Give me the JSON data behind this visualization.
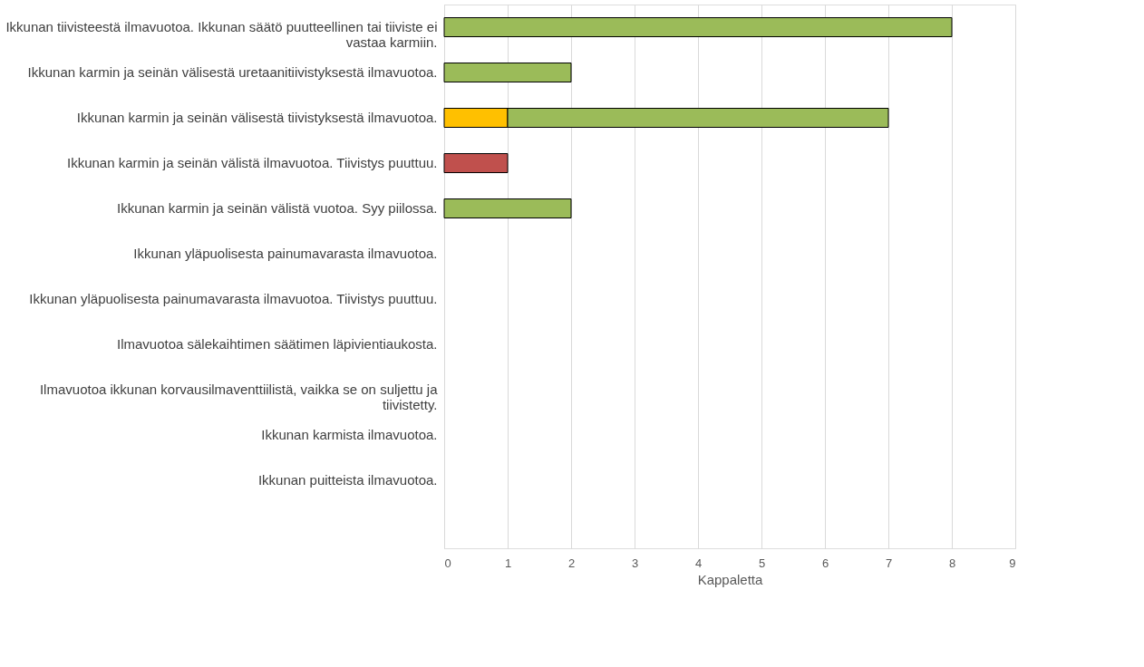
{
  "chart_data": {
    "type": "bar",
    "orientation": "horizontal",
    "stacked": true,
    "xlabel": "Kappaletta",
    "categories": [
      "Ikkunan tiivisteestä ilmavuotoa. Ikkunan säätö puutteellinen tai tiiviste ei vastaa karmiin.",
      "Ikkunan karmin ja seinän välisestä uretaanitiivistyksestä ilmavuotoa.",
      "Ikkunan karmin ja seinän välisestä tiivistyksestä ilmavuotoa.",
      "Ikkunan  karmin ja seinän välistä ilmavuotoa. Tiivistys puuttuu.",
      "Ikkunan karmin ja seinän välistä vuotoa. Syy piilossa.",
      "Ikkunan yläpuolisesta painumavarasta ilmavuotoa.",
      "Ikkunan yläpuolisesta painumavarasta ilmavuotoa. Tiivistys puuttuu.",
      "Ilmavuotoa sälekaihtimen säätimen läpivientiaukosta.",
      "Ilmavuotoa ikkunan korvausilmaventtiilistä, vaikka se on suljettu ja tiivistetty.",
      "Ikkunan karmista ilmavuotoa.",
      "Ikkunan puitteista ilmavuotoa.",
      null
    ],
    "series": [
      {
        "color": "#c0504d",
        "values": [
          null,
          null,
          null,
          1,
          null,
          null,
          null,
          null,
          null,
          null,
          null,
          null
        ]
      },
      {
        "color": "#ffc000",
        "values": [
          null,
          null,
          1,
          null,
          null,
          null,
          null,
          null,
          null,
          null,
          null,
          null
        ]
      },
      {
        "color": "#9bbb59",
        "values": [
          8,
          2,
          6,
          null,
          2,
          null,
          null,
          null,
          null,
          null,
          null,
          null
        ]
      }
    ],
    "xlim": [
      0,
      9
    ],
    "xticks": [
      0,
      1,
      2,
      3,
      4,
      5,
      6,
      7,
      8,
      9
    ],
    "grid": "x"
  }
}
